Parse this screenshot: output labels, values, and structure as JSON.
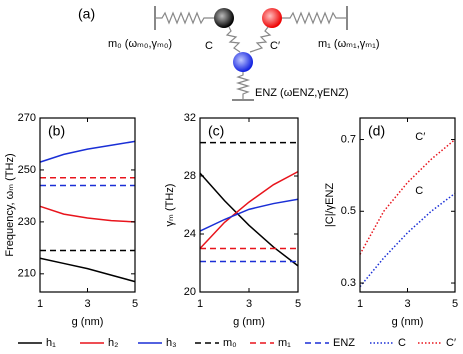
{
  "diagram": {
    "panel_label": "(a)",
    "m0": "m₀ (ωₘ₀,γₘ₀)",
    "m1": "m₁ (ωₘ₁,γₘ₁)",
    "c": "C",
    "c_prime": "C′",
    "enz": "ENZ (ωENZ,γENZ)"
  },
  "chart_data": [
    {
      "type": "line",
      "panel_label": "(b)",
      "ylabel": "Frequency, ωₘ (THz)",
      "xlabel": "g (nm)",
      "x": [
        1,
        2,
        3,
        4,
        5
      ],
      "xlim": [
        1,
        5
      ],
      "xticks": [
        1,
        3,
        5
      ],
      "ylim": [
        203,
        270
      ],
      "yticks": [
        210,
        230,
        250,
        270
      ],
      "series": [
        {
          "name": "h₁",
          "color": "#000000",
          "dash": "solid",
          "values": [
            216,
            214,
            212,
            209.5,
            207
          ]
        },
        {
          "name": "h₂",
          "color": "#e8141c",
          "dash": "solid",
          "values": [
            236,
            233,
            231.5,
            230.5,
            230
          ]
        },
        {
          "name": "h₃",
          "color": "#1a2fd6",
          "dash": "solid",
          "values": [
            253,
            256,
            258,
            259.5,
            261
          ]
        },
        {
          "name": "m₀",
          "color": "#000000",
          "dash": "dashed",
          "values": [
            219,
            219,
            219,
            219,
            219
          ]
        },
        {
          "name": "m₁",
          "color": "#e8141c",
          "dash": "dashed",
          "values": [
            247,
            247,
            247,
            247,
            247
          ]
        },
        {
          "name": "ENZ",
          "color": "#1a2fd6",
          "dash": "dashed",
          "values": [
            244,
            244,
            244,
            244,
            244
          ]
        }
      ]
    },
    {
      "type": "line",
      "panel_label": "(c)",
      "ylabel": "γₘ (THz)",
      "xlabel": "g (nm)",
      "x": [
        1,
        2,
        3,
        4,
        5
      ],
      "xlim": [
        1,
        5
      ],
      "xticks": [
        1,
        3,
        5
      ],
      "ylim": [
        20,
        32
      ],
      "yticks": [
        20,
        24,
        28,
        32
      ],
      "series": [
        {
          "color": "#000000",
          "dash": "solid",
          "values": [
            28.2,
            26.3,
            24.6,
            23.1,
            21.8
          ]
        },
        {
          "color": "#e8141c",
          "dash": "solid",
          "values": [
            23,
            24.8,
            26.2,
            27.4,
            28.3
          ]
        },
        {
          "color": "#1a2fd6",
          "dash": "solid",
          "values": [
            24.2,
            25,
            25.7,
            26.1,
            26.4
          ]
        },
        {
          "color": "#000000",
          "dash": "dashed",
          "values": [
            30.3,
            30.3,
            30.3,
            30.3,
            30.3
          ]
        },
        {
          "color": "#e8141c",
          "dash": "dashed",
          "values": [
            23,
            23,
            23,
            23,
            23
          ]
        },
        {
          "color": "#1a2fd6",
          "dash": "dashed",
          "values": [
            22.1,
            22.1,
            22.1,
            22.1,
            22.1
          ]
        }
      ]
    },
    {
      "type": "line",
      "panel_label": "(d)",
      "ylabel": "|C|/γENZ",
      "xlabel": "g (nm)",
      "x": [
        1,
        2,
        3,
        4,
        5
      ],
      "xlim": [
        1,
        5
      ],
      "xticks": [
        1,
        3,
        5
      ],
      "ylim": [
        0.275,
        0.76
      ],
      "yticks": [
        0.3,
        0.5,
        0.7
      ],
      "series": [
        {
          "name": "C",
          "color": "#1a2fd6",
          "dash": "dotted",
          "values": [
            0.29,
            0.37,
            0.44,
            0.5,
            0.55
          ]
        },
        {
          "name": "C′",
          "color": "#e8141c",
          "dash": "dotted",
          "values": [
            0.38,
            0.5,
            0.58,
            0.645,
            0.7
          ]
        }
      ]
    }
  ]
}
